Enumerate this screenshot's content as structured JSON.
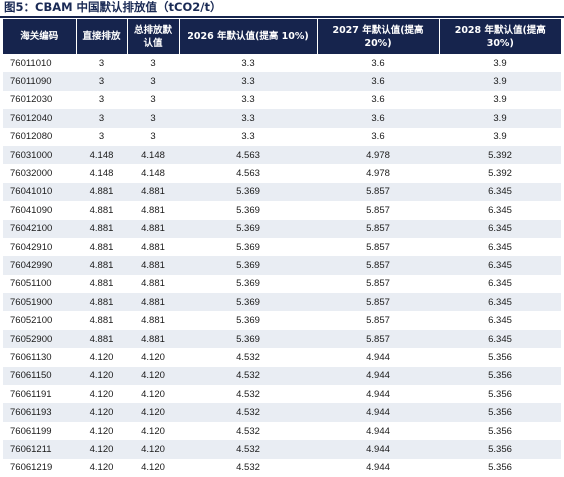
{
  "title": "图5：CBAM 中国默认排放值（tCO2/t）",
  "headers": [
    "海关编码",
    "直接排放",
    "总排放默认值",
    "2026 年默认值(提高 10%)",
    "2027 年默认值(提高 20%)",
    "2028 年默认值(提高 30%)"
  ],
  "rows": [
    [
      "76011010",
      "3",
      "3",
      "3.3",
      "3.6",
      "3.9"
    ],
    [
      "76011090",
      "3",
      "3",
      "3.3",
      "3.6",
      "3.9"
    ],
    [
      "76012030",
      "3",
      "3",
      "3.3",
      "3.6",
      "3.9"
    ],
    [
      "76012040",
      "3",
      "3",
      "3.3",
      "3.6",
      "3.9"
    ],
    [
      "76012080",
      "3",
      "3",
      "3.3",
      "3.6",
      "3.9"
    ],
    [
      "76031000",
      "4.148",
      "4.148",
      "4.563",
      "4.978",
      "5.392"
    ],
    [
      "76032000",
      "4.148",
      "4.148",
      "4.563",
      "4.978",
      "5.392"
    ],
    [
      "76041010",
      "4.881",
      "4.881",
      "5.369",
      "5.857",
      "6.345"
    ],
    [
      "76041090",
      "4.881",
      "4.881",
      "5.369",
      "5.857",
      "6.345"
    ],
    [
      "76042100",
      "4.881",
      "4.881",
      "5.369",
      "5.857",
      "6.345"
    ],
    [
      "76042910",
      "4.881",
      "4.881",
      "5.369",
      "5.857",
      "6.345"
    ],
    [
      "76042990",
      "4.881",
      "4.881",
      "5.369",
      "5.857",
      "6.345"
    ],
    [
      "76051100",
      "4.881",
      "4.881",
      "5.369",
      "5.857",
      "6.345"
    ],
    [
      "76051900",
      "4.881",
      "4.881",
      "5.369",
      "5.857",
      "6.345"
    ],
    [
      "76052100",
      "4.881",
      "4.881",
      "5.369",
      "5.857",
      "6.345"
    ],
    [
      "76052900",
      "4.881",
      "4.881",
      "5.369",
      "5.857",
      "6.345"
    ],
    [
      "76061130",
      "4.120",
      "4.120",
      "4.532",
      "4.944",
      "5.356"
    ],
    [
      "76061150",
      "4.120",
      "4.120",
      "4.532",
      "4.944",
      "5.356"
    ],
    [
      "76061191",
      "4.120",
      "4.120",
      "4.532",
      "4.944",
      "5.356"
    ],
    [
      "76061193",
      "4.120",
      "4.120",
      "4.532",
      "4.944",
      "5.356"
    ],
    [
      "76061199",
      "4.120",
      "4.120",
      "4.532",
      "4.944",
      "5.356"
    ],
    [
      "76061211",
      "4.120",
      "4.120",
      "4.532",
      "4.944",
      "5.356"
    ],
    [
      "76061219",
      "4.120",
      "4.120",
      "4.532",
      "4.944",
      "5.356"
    ]
  ],
  "colors": {
    "header_bg": "#16244d",
    "header_text": "#ffffff",
    "row_alt_bg": "#e9edf3"
  }
}
